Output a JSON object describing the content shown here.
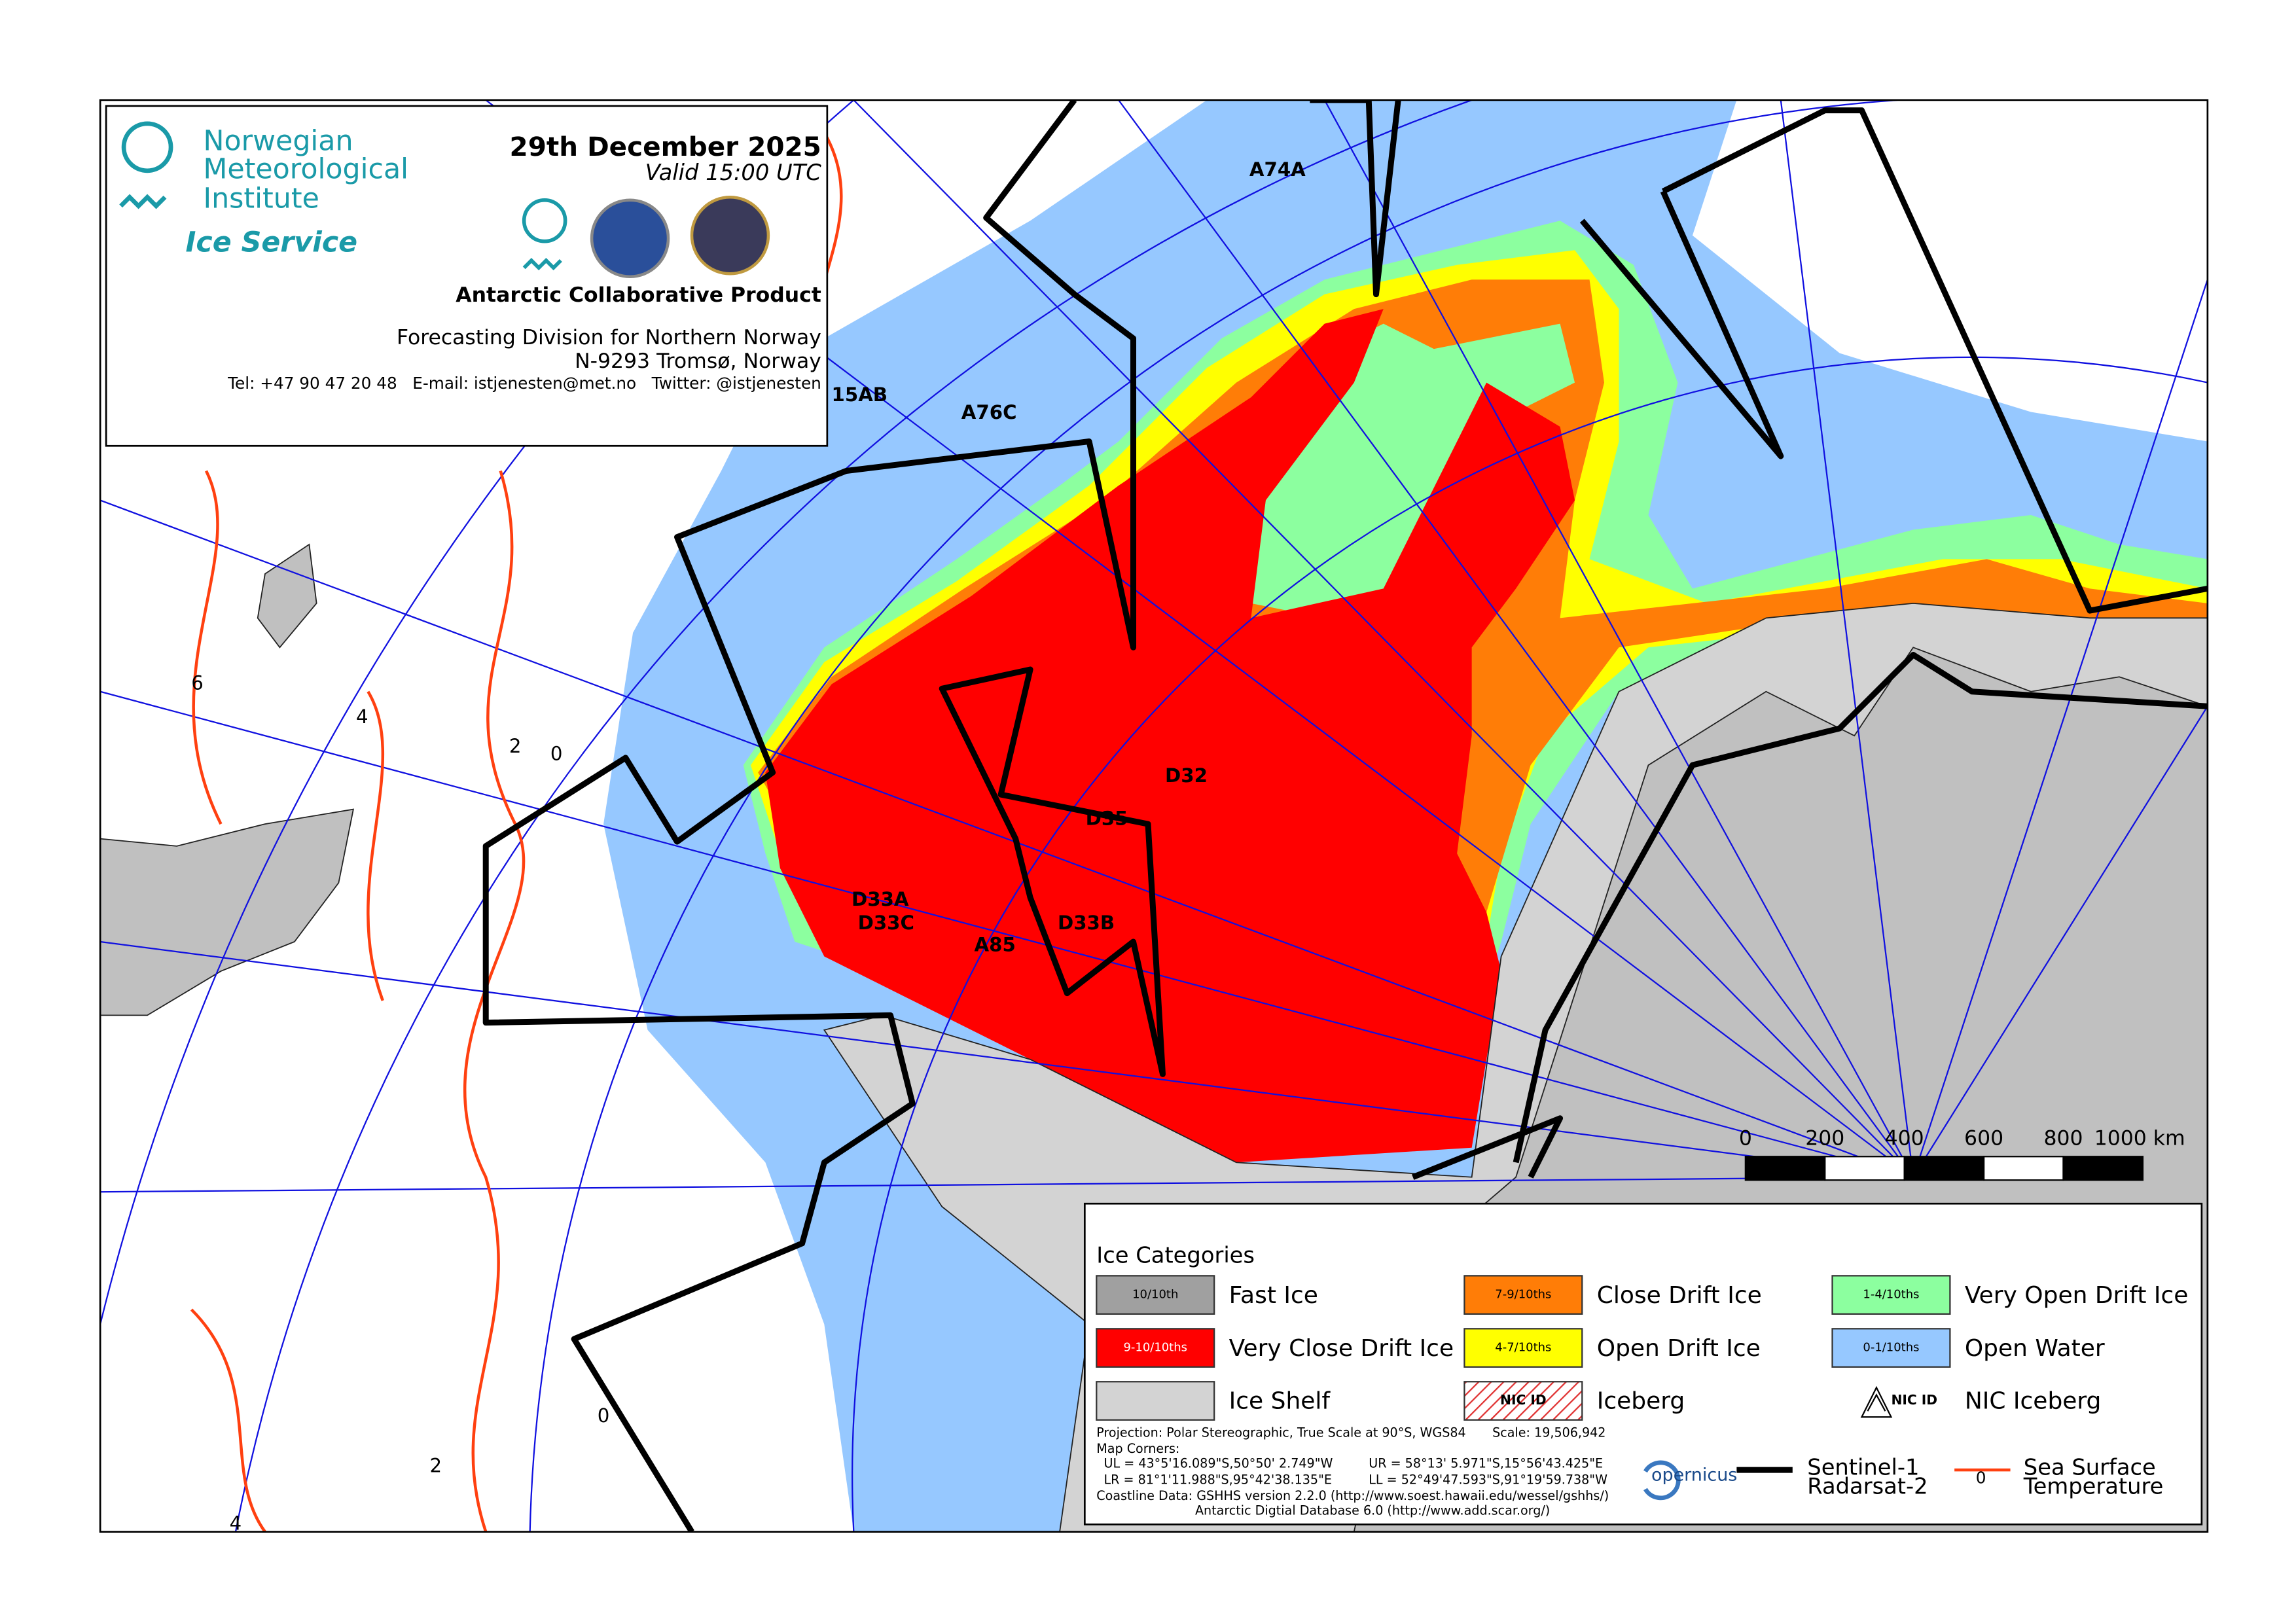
{
  "header": {
    "org_lines": [
      "Norwegian",
      "Meteorological",
      "Institute"
    ],
    "service": "Ice Service",
    "date": "29th December 2025",
    "valid": "Valid 15:00 UTC",
    "product": "Antarctic Collaborative Product",
    "division": "Forecasting Division for Northern Norway",
    "address": "N-9293 Tromsø, Norway",
    "contact": "Tel: +47 90 47 20 48   E-mail: istjenesten@met.no   Twitter: @istjenesten"
  },
  "map": {
    "iceberg_labels": [
      "A74A",
      "A76C",
      "15AB",
      "D32",
      "D35",
      "D33A",
      "D33C",
      "D33B",
      "A85"
    ],
    "sst_labels": [
      "6",
      "4",
      "2",
      "0",
      "0",
      "2",
      "4"
    ]
  },
  "scale_bar": {
    "labels": [
      "0",
      "200",
      "400",
      "600",
      "800",
      "1000 km"
    ]
  },
  "legend": {
    "title": "Ice Categories",
    "items": [
      {
        "swatch": "10/10th",
        "label": "Fast Ice",
        "color": "#a0a0a0"
      },
      {
        "swatch": "9-10/10ths",
        "label": "Very Close Drift Ice",
        "color": "#ff0000"
      },
      {
        "label": "Ice Shelf",
        "color": "#d3d3d3"
      },
      {
        "swatch": "7-9/10ths",
        "label": "Close Drift Ice",
        "color": "#ff7d07"
      },
      {
        "swatch": "4-7/10ths",
        "label": "Open Drift Ice",
        "color": "#ffff00"
      },
      {
        "swatch": "NIC ID",
        "label": "Iceberg",
        "color": "#ffffff"
      },
      {
        "swatch": "1-4/10ths",
        "label": "Very Open Drift Ice",
        "color": "#8cff9f"
      },
      {
        "swatch": "0-1/10ths",
        "label": "Open Water",
        "color": "#96c8ff"
      },
      {
        "swatch": "NIC ID",
        "label": "NIC Iceberg"
      }
    ],
    "notes": [
      "Projection: Polar Stereographic, True Scale at 90°S, WGS84",
      "Scale: 19,506,942",
      "Map Corners:",
      "UL = 43°5'16.089\"S,50°50' 2.749\"W",
      "UR = 58°13' 5.971\"S,15°56'43.425\"E",
      "LR = 81°1'11.988\"S,95°42'38.135\"E",
      "LL = 52°49'47.593\"S,91°19'59.738\"W",
      "Coastline Data:  GSHHS version 2.2.0 (http://www.soest.hawaii.edu/wessel/gshhs/)",
      "Antarctic Digtial Database 6.0 (http://www.add.scar.org/)"
    ],
    "logo_text": "opernicus",
    "lines": [
      {
        "label": [
          "Sentinel-1",
          "Radarsat-2"
        ]
      },
      {
        "marker": "0",
        "label": [
          "Sea Surface",
          "Temperature"
        ]
      }
    ]
  }
}
